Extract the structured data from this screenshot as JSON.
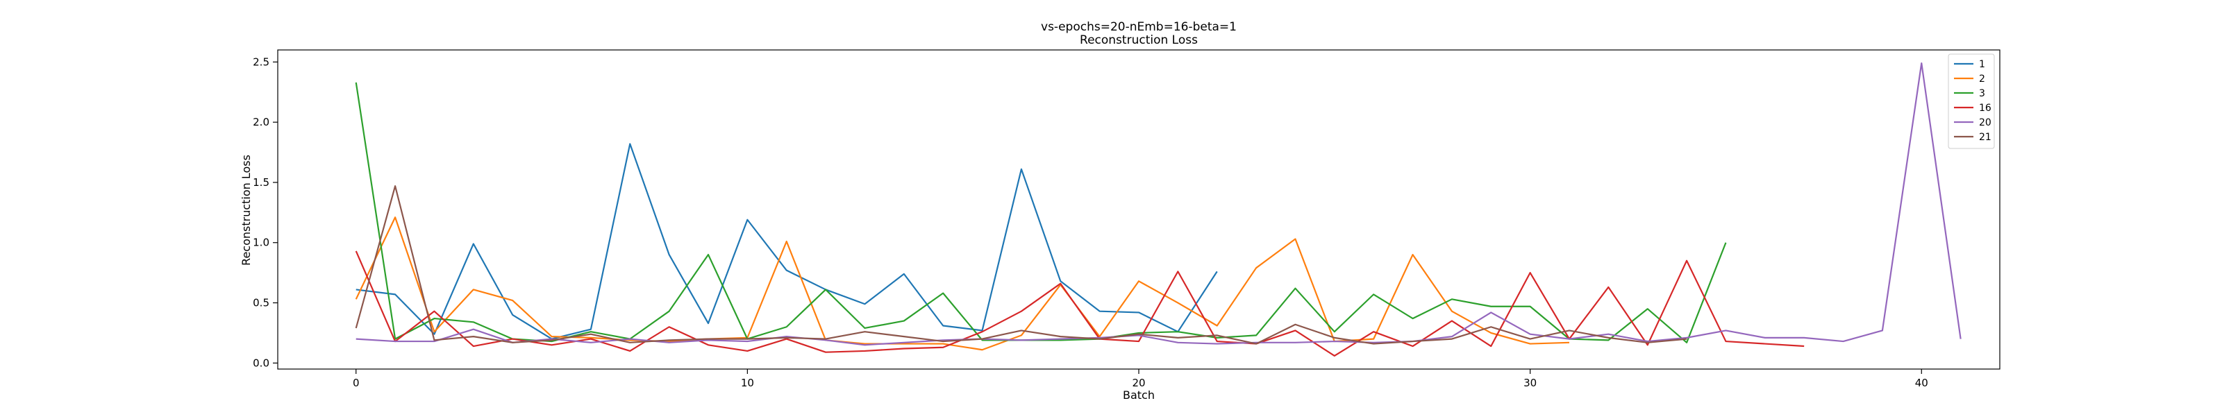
{
  "chart_data": {
    "type": "line",
    "title_line1": "vs-epochs=20-nEmb=16-beta=1",
    "title_line2": "Reconstruction Loss",
    "xlabel": "Batch",
    "ylabel": "Reconstruction Loss",
    "xlim": [
      -2,
      42
    ],
    "ylim": [
      -0.05,
      2.6
    ],
    "xticks": [
      0,
      10,
      20,
      30,
      40
    ],
    "xtick_labels": [
      "0",
      "10",
      "20",
      "30",
      "40"
    ],
    "yticks": [
      0.0,
      0.5,
      1.0,
      1.5,
      2.0,
      2.5
    ],
    "ytick_labels": [
      "0.0",
      "0.5",
      "1.0",
      "1.5",
      "2.0",
      "2.5"
    ],
    "grid": false,
    "legend_position": "top-right",
    "series": [
      {
        "name": "1",
        "color": "#1f77b4",
        "values": [
          0.61,
          0.57,
          0.24,
          0.99,
          0.4,
          0.2,
          0.28,
          1.82,
          0.9,
          0.33,
          1.19,
          0.77,
          0.61,
          0.49,
          0.74,
          0.31,
          0.27,
          1.61,
          0.68,
          0.43,
          0.42,
          0.26,
          0.76
        ]
      },
      {
        "name": "2",
        "color": "#ff7f0e",
        "values": [
          0.53,
          1.21,
          0.26,
          0.61,
          0.52,
          0.22,
          0.21,
          0.19,
          0.18,
          0.2,
          0.21,
          1.01,
          0.19,
          0.16,
          0.16,
          0.16,
          0.11,
          0.23,
          0.65,
          0.22,
          0.68,
          0.5,
          0.31,
          0.79,
          1.03,
          0.18,
          0.2,
          0.9,
          0.43,
          0.25,
          0.16,
          0.17
        ]
      },
      {
        "name": "3",
        "color": "#2ca02c",
        "values": [
          2.33,
          0.2,
          0.37,
          0.34,
          0.2,
          0.18,
          0.26,
          0.2,
          0.43,
          0.9,
          0.2,
          0.3,
          0.61,
          0.29,
          0.35,
          0.58,
          0.19,
          0.19,
          0.19,
          0.2,
          0.25,
          0.26,
          0.21,
          0.23,
          0.62,
          0.26,
          0.57,
          0.37,
          0.53,
          0.47,
          0.47,
          0.2,
          0.19,
          0.45,
          0.17,
          1.0
        ]
      },
      {
        "name": "16",
        "color": "#d62728",
        "values": [
          0.93,
          0.18,
          0.43,
          0.14,
          0.2,
          0.15,
          0.2,
          0.1,
          0.3,
          0.15,
          0.1,
          0.2,
          0.09,
          0.1,
          0.12,
          0.13,
          0.26,
          0.43,
          0.66,
          0.2,
          0.18,
          0.76,
          0.18,
          0.16,
          0.27,
          0.06,
          0.26,
          0.14,
          0.35,
          0.14,
          0.75,
          0.2,
          0.63,
          0.15,
          0.85,
          0.18,
          0.16,
          0.14
        ]
      },
      {
        "name": "20",
        "color": "#9467bd",
        "values": [
          0.2,
          0.18,
          0.18,
          0.28,
          0.17,
          0.2,
          0.17,
          0.2,
          0.17,
          0.19,
          0.18,
          0.22,
          0.19,
          0.15,
          0.17,
          0.19,
          0.2,
          0.19,
          0.2,
          0.21,
          0.23,
          0.17,
          0.16,
          0.17,
          0.17,
          0.18,
          0.17,
          0.18,
          0.22,
          0.42,
          0.24,
          0.2,
          0.24,
          0.18,
          0.21,
          0.27,
          0.21,
          0.21,
          0.18,
          0.27,
          2.49,
          0.2
        ]
      },
      {
        "name": "21",
        "color": "#8c564b",
        "values": [
          0.29,
          1.47,
          0.19,
          0.22,
          0.17,
          0.19,
          0.24,
          0.17,
          0.19,
          0.2,
          0.2,
          0.21,
          0.2,
          0.26,
          0.22,
          0.18,
          0.2,
          0.27,
          0.22,
          0.2,
          0.24,
          0.21,
          0.23,
          0.16,
          0.32,
          0.21,
          0.16,
          0.18,
          0.2,
          0.3,
          0.2,
          0.27,
          0.21,
          0.17,
          0.2
        ]
      }
    ]
  }
}
